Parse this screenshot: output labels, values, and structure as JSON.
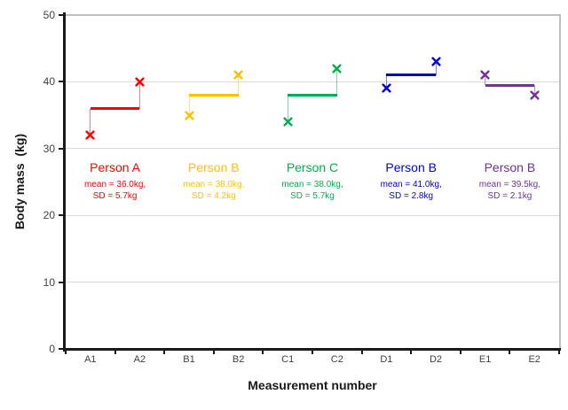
{
  "chart_data": {
    "type": "scatter",
    "title": "",
    "xlabel": "Measurement number",
    "ylabel": "Body mass  (kg)",
    "categories": [
      "A1",
      "A2",
      "B1",
      "B2",
      "C1",
      "C2",
      "D1",
      "D2",
      "E1",
      "E2"
    ],
    "ylim": [
      0,
      50
    ],
    "ytick_values": [
      0,
      10,
      20,
      30,
      40,
      50
    ],
    "gridline_values": [
      10,
      20,
      30,
      40
    ],
    "grid": "horizontal",
    "legend_position": "none",
    "marker": "x",
    "series": [
      {
        "name": "Person A",
        "color": "#FF0000",
        "x": [
          "A1",
          "A2"
        ],
        "values": [
          32,
          40
        ],
        "mean": 36.0,
        "sd": 5.7,
        "annotation": {
          "title": "Person A",
          "line1": "mean = 36.0kg,",
          "line2": "SD = 5.7kg"
        }
      },
      {
        "name": "Person B",
        "color": "#FFC000",
        "x": [
          "B1",
          "B2"
        ],
        "values": [
          35,
          41
        ],
        "mean": 38.0,
        "sd": 4.2,
        "annotation": {
          "title": "Person B",
          "line1": "mean = 38.0kg,",
          "line2": "SD = 4.2kg"
        }
      },
      {
        "name": "Person C",
        "color": "#00B050",
        "x": [
          "C1",
          "C2"
        ],
        "values": [
          34,
          42
        ],
        "mean": 38.0,
        "sd": 5.7,
        "annotation": {
          "title": "Person C",
          "line1": "mean = 38.0kg,",
          "line2": "SD = 5.7kg"
        }
      },
      {
        "name": "Person B",
        "color": "#0000EE",
        "x": [
          "D1",
          "D2"
        ],
        "values": [
          39,
          43
        ],
        "mean": 41.0,
        "sd": 2.8,
        "annotation": {
          "title": "Person B",
          "line1": "mean = 41.0kg,",
          "line2": "SD = 2.8kg"
        }
      },
      {
        "name": "Person B",
        "color": "#7030A0",
        "x": [
          "E1",
          "E2"
        ],
        "values": [
          41,
          38
        ],
        "mean": 39.5,
        "sd": 2.1,
        "annotation": {
          "title": "Person B",
          "line1": "mean = 39.5kg,",
          "line2": "SD = 2.1kg"
        }
      }
    ],
    "colors": {
      "axis": "#1a1a1a",
      "plot_border": "#bfbfbf",
      "gridline": "#d9d9d9",
      "tick_text": "#404040"
    }
  }
}
